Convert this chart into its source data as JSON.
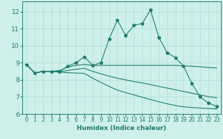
{
  "title": "",
  "xlabel": "Humidex (Indice chaleur)",
  "xlim": [
    -0.5,
    23.5
  ],
  "ylim": [
    6.0,
    12.6
  ],
  "yticks": [
    6,
    7,
    8,
    9,
    10,
    11,
    12
  ],
  "xticks": [
    0,
    1,
    2,
    3,
    4,
    5,
    6,
    7,
    8,
    9,
    10,
    11,
    12,
    13,
    14,
    15,
    16,
    17,
    18,
    19,
    20,
    21,
    22,
    23
  ],
  "bg_color": "#cff0ea",
  "grid_color": "#a8ddd6",
  "line_color": "#1a7a6e",
  "series": [
    [
      8.9,
      8.4,
      8.5,
      8.5,
      8.5,
      8.8,
      9.0,
      9.35,
      8.85,
      9.0,
      10.4,
      11.5,
      10.6,
      11.2,
      11.3,
      12.1,
      10.5,
      9.6,
      9.3,
      8.8,
      7.8,
      7.0,
      6.65,
      6.45
    ],
    [
      8.9,
      8.4,
      8.5,
      8.5,
      8.55,
      8.75,
      8.85,
      8.9,
      8.85,
      8.85,
      8.85,
      8.85,
      8.85,
      8.85,
      8.85,
      8.85,
      8.85,
      8.85,
      8.85,
      8.82,
      8.8,
      8.77,
      8.72,
      8.7
    ],
    [
      8.9,
      8.4,
      8.5,
      8.5,
      8.48,
      8.55,
      8.62,
      8.68,
      8.5,
      8.35,
      8.22,
      8.1,
      8.0,
      7.9,
      7.82,
      7.72,
      7.62,
      7.52,
      7.42,
      7.32,
      7.22,
      7.12,
      7.02,
      6.95
    ],
    [
      8.9,
      8.4,
      8.5,
      8.5,
      8.45,
      8.42,
      8.4,
      8.38,
      8.1,
      7.85,
      7.62,
      7.4,
      7.25,
      7.12,
      6.98,
      6.85,
      6.72,
      6.6,
      6.5,
      6.42,
      6.38,
      6.35,
      6.32,
      6.3
    ]
  ]
}
